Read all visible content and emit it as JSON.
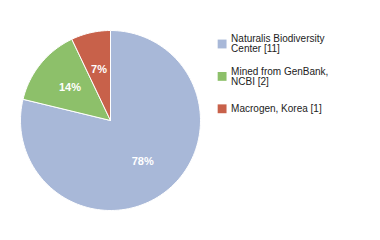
{
  "chart_data": {
    "type": "pie",
    "categories": [
      "Naturalis Biodiversity Center [11]",
      "Mined from GenBank, NCBI [2]",
      "Macrogen, Korea [1]"
    ],
    "values": [
      78,
      14,
      7
    ],
    "value_labels": [
      "78%",
      "14%",
      "7%"
    ],
    "colors": [
      "#a8b8d8",
      "#8dc06a",
      "#c8614a"
    ],
    "data_labels": true,
    "legend": "right"
  }
}
